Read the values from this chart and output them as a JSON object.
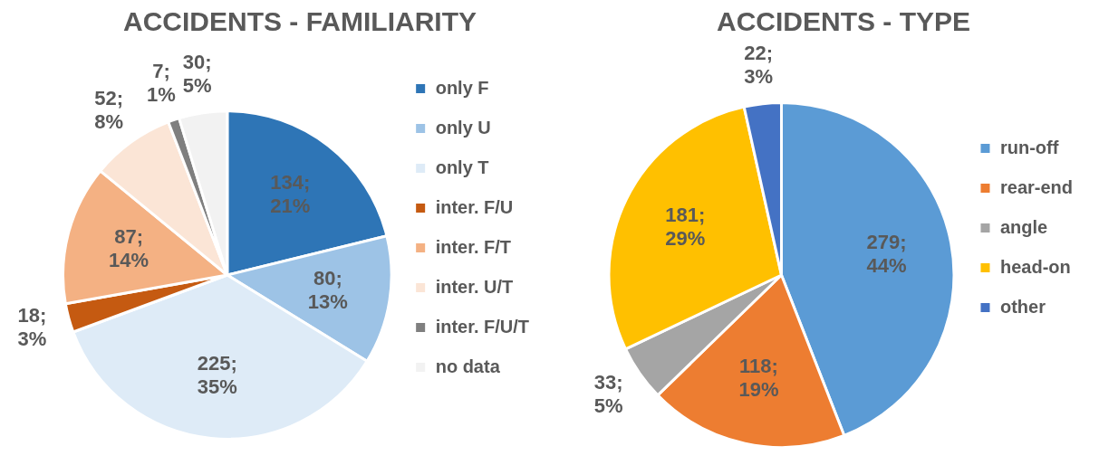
{
  "chart_data": [
    {
      "type": "pie",
      "title": "ACCIDENTS - FAMILIARITY",
      "categories": [
        "only F",
        "only U",
        "only T",
        "inter. F/U",
        "inter. F/T",
        "inter. U/T",
        "inter. F/U/T",
        "no data"
      ],
      "values": [
        134,
        80,
        225,
        18,
        87,
        52,
        7,
        30
      ],
      "colors": [
        "#2e75b6",
        "#9dc3e6",
        "#deebf7",
        "#c55a11",
        "#f4b183",
        "#fbe5d6",
        "#7f7f7f",
        "#f2f2f2"
      ],
      "value_labels": [
        "134; 21%",
        "80; 13%",
        "225; 35%",
        "18; 3%",
        "87; 14%",
        "52; 8%",
        "7; 1%",
        "30; 5%"
      ],
      "legend": "right"
    },
    {
      "type": "pie",
      "title": "ACCIDENTS - TYPE",
      "categories": [
        "run-off",
        "rear-end",
        "angle",
        "head-on",
        "other"
      ],
      "values": [
        279,
        118,
        33,
        181,
        22
      ],
      "colors": [
        "#5b9bd5",
        "#ed7d31",
        "#a5a5a5",
        "#ffc000",
        "#4472c4"
      ],
      "value_labels": [
        "279; 44%",
        "118; 19%",
        "33; 5%",
        "181; 29%",
        "22; 3%"
      ],
      "legend": "right"
    }
  ]
}
